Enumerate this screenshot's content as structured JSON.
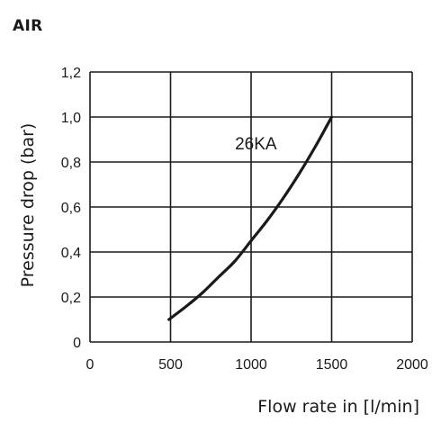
{
  "figure_title": "AIR",
  "chart_data": {
    "type": "line",
    "title": "",
    "xlabel": "Flow rate in [l/min]",
    "ylabel": "Pressure drop (bar)",
    "xlim": [
      0,
      2000
    ],
    "ylim": [
      0,
      1.2
    ],
    "x_ticks": [
      0,
      500,
      1000,
      1500,
      2000
    ],
    "x_tick_labels": [
      "0",
      "500",
      "1000",
      "1500",
      "2000"
    ],
    "y_ticks": [
      0,
      0.2,
      0.4,
      0.6,
      0.8,
      1.0,
      1.2
    ],
    "y_tick_labels": [
      "0",
      "0,2",
      "0,4",
      "0,6",
      "0,8",
      "1,0",
      "1,2"
    ],
    "grid": true,
    "series": [
      {
        "name": "26KA",
        "color": "#1a1a1a",
        "x": [
          490,
          600,
          700,
          800,
          900,
          1000,
          1100,
          1200,
          1300,
          1400,
          1500
        ],
        "y": [
          0.1,
          0.16,
          0.22,
          0.29,
          0.36,
          0.45,
          0.54,
          0.64,
          0.75,
          0.87,
          1.0
        ]
      }
    ],
    "annotations": [
      {
        "text": "26KA",
        "x": 900,
        "y": 0.88
      }
    ]
  }
}
